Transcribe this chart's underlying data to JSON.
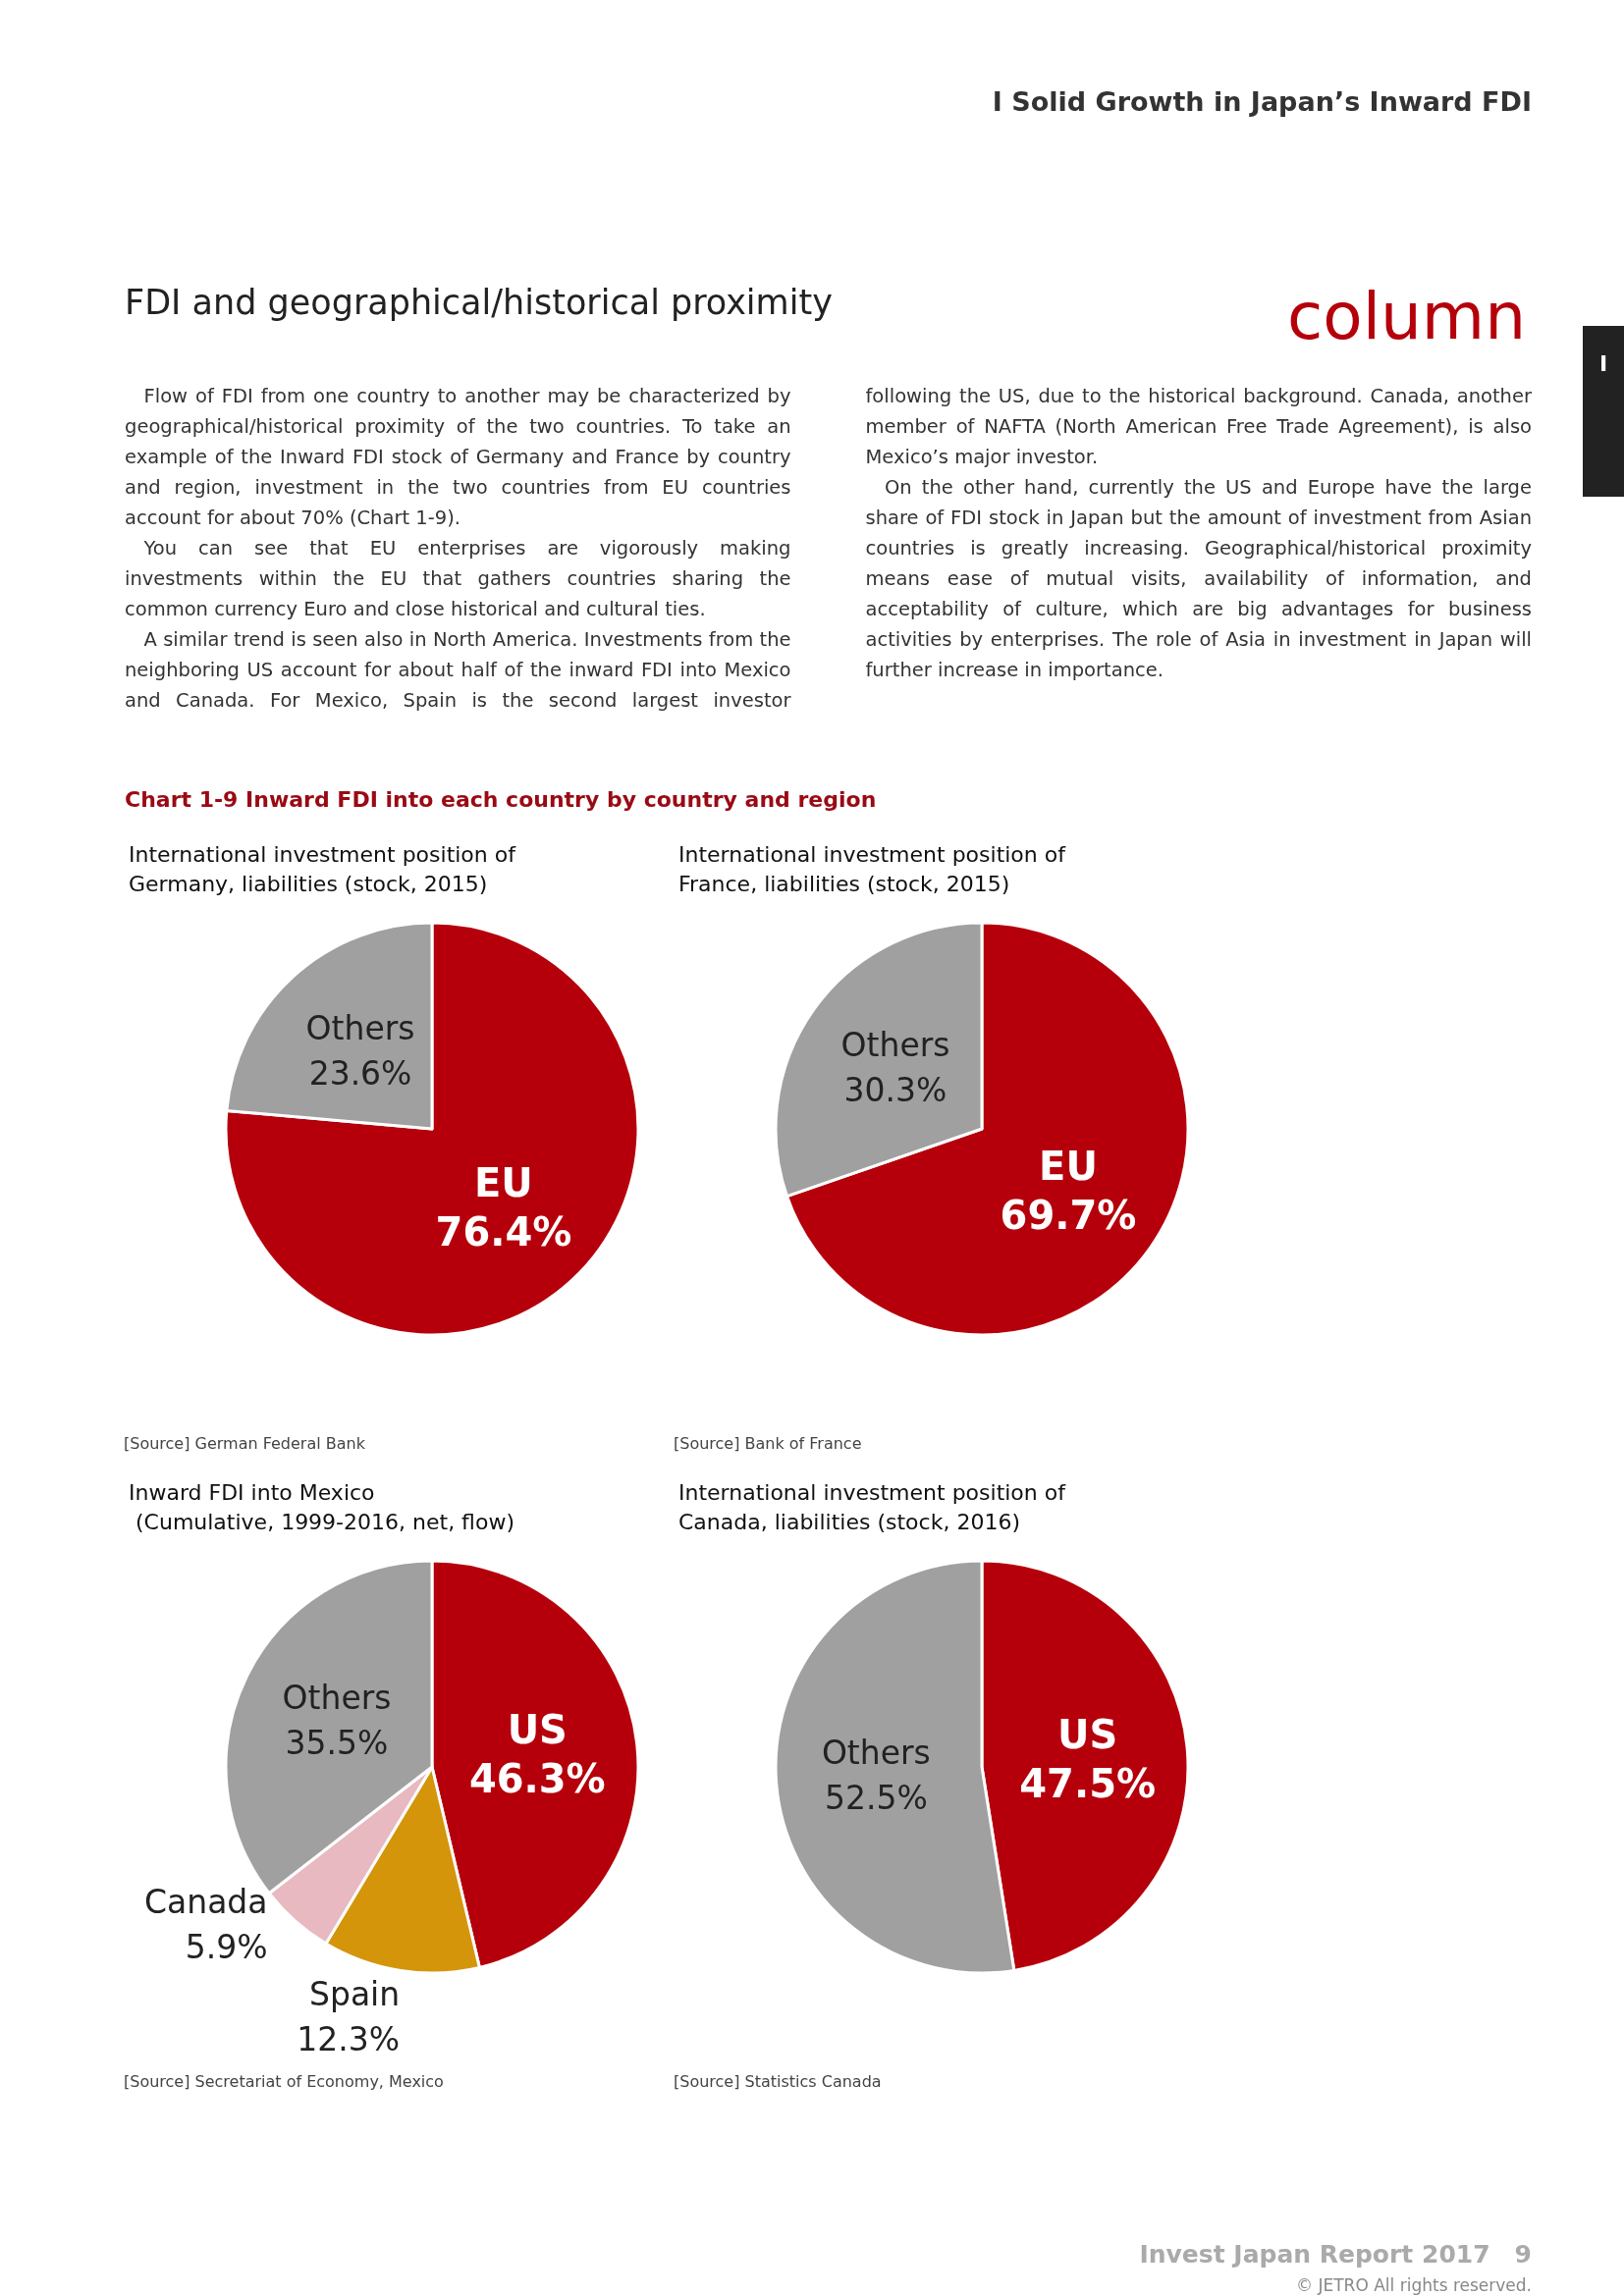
{
  "chart_data": [
    {
      "type": "other",
      "title": "FDI and geographical/historical proximity",
      "annotations": [
        "Ⅰ  Solid Growth in Japan’s Inward FDI",
        "column",
        "Flow of FDI from one country to another may be characterized by geographical/historical proximity of the two countries. To take an example of the Inward FDI stock of Germany and France by country and region, investment in the two countries from EU countries account for about 70% (Chart 1-9).",
        "You can see that EU enterprises are vigorously making investments within the EU that gathers countries sharing the common currency Euro and close historical and cultural ties.",
        "A similar trend is seen also in North America. Investments from the neighboring US account for about half of the inward FDI into Mexico and Canada. For Mexico, Spain is the second largest investor following the US, due to the historical background. Canada, another member of NAFTA (North American Free Trade Agreement), is also Mexico’s major investor.",
        "On the other hand, currently the US and Europe have the large share of FDI stock in Japan but the amount of investment from Asian countries is greatly increasing. Geographical/historical proximity means ease of mutual visits, availability of information, and acceptability of culture, which are big advantages for business activities by enterprises. The role of Asia in investment in Japan will further increase in importance.",
        "Chart 1-9 Inward FDI into each country by country and region",
        "Invest Japan Report 2017　9",
        "© JETRO All rights reserved.",
        "Ⅰ"
      ]
    },
    {
      "type": "pie",
      "title": "International investment position of\nGermany, liabilities (stock, 2015)",
      "categories": [
        "EU",
        "Others"
      ],
      "values": [
        76.4,
        23.6
      ],
      "value_labels": [
        "76.4%",
        "23.6%"
      ],
      "colors": [
        "#b5000b",
        "#a0a0a0"
      ],
      "annotations": [
        "[Source] German Federal Bank"
      ]
    },
    {
      "type": "pie",
      "title": "International investment position of\nFrance, liabilities (stock, 2015)",
      "categories": [
        "EU",
        "Others"
      ],
      "values": [
        69.7,
        30.3
      ],
      "value_labels": [
        "69.7%",
        "30.3%"
      ],
      "colors": [
        "#b5000b",
        "#a0a0a0"
      ],
      "annotations": [
        "[Source] Bank of France"
      ]
    },
    {
      "type": "pie",
      "title": "Inward FDI into Mexico\n (Cumulative, 1999-2016, net, flow)",
      "categories": [
        "US",
        "Spain",
        "Canada",
        "Others"
      ],
      "values": [
        46.3,
        12.3,
        5.9,
        35.5
      ],
      "value_labels": [
        "46.3%",
        "12.3%",
        "5.9%",
        "35.5%"
      ],
      "colors": [
        "#b5000b",
        "#d4950a",
        "#e8b9c0",
        "#a0a0a0"
      ],
      "annotations": [
        "[Source] Secretariat of Economy, Mexico"
      ]
    },
    {
      "type": "pie",
      "title": "International investment position of\nCanada, liabilities (stock, 2016)",
      "categories": [
        "US",
        "Others"
      ],
      "values": [
        47.5,
        52.5
      ],
      "value_labels": [
        "47.5%",
        "52.5%"
      ],
      "colors": [
        "#b5000b",
        "#a0a0a0"
      ],
      "annotations": [
        "[Source] Statistics Canada"
      ]
    }
  ]
}
